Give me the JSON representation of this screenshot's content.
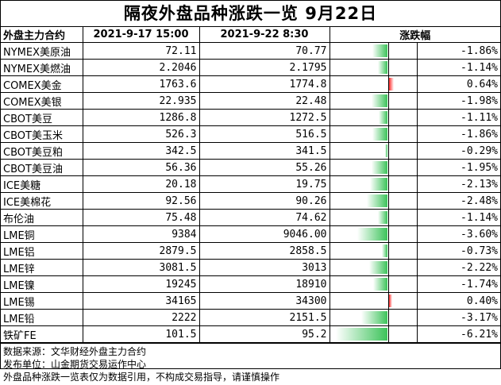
{
  "title": "隔夜外盘品种涨跌一览 9月22日",
  "headers": {
    "contract": "外盘主力合约",
    "date1": "2021-9-17 15:00",
    "date2": "2021-9-22 8:30",
    "change": "涨跌幅"
  },
  "colors": {
    "up": "#ff2b2b",
    "down": "#3cc35a"
  },
  "rows": [
    {
      "name": "NYMEX美原油",
      "v1": "72.11",
      "v2": "70.77",
      "pct": "-1.86%",
      "pct_value": -1.86
    },
    {
      "name": "NYMEX美燃油",
      "v1": "2.2046",
      "v2": "2.1795",
      "pct": "-1.14%",
      "pct_value": -1.14
    },
    {
      "name": "COMEX美金",
      "v1": "1763.6",
      "v2": "1774.8",
      "pct": "0.64%",
      "pct_value": 0.64
    },
    {
      "name": "COMEX美银",
      "v1": "22.935",
      "v2": "22.48",
      "pct": "-1.98%",
      "pct_value": -1.98
    },
    {
      "name": "CBOT美豆",
      "v1": "1286.8",
      "v2": "1272.5",
      "pct": "-1.11%",
      "pct_value": -1.11
    },
    {
      "name": "CBOT美玉米",
      "v1": "526.3",
      "v2": "516.5",
      "pct": "-1.86%",
      "pct_value": -1.86
    },
    {
      "name": "CBOT美豆粕",
      "v1": "342.5",
      "v2": "341.5",
      "pct": "-0.29%",
      "pct_value": -0.29
    },
    {
      "name": "CBOT美豆油",
      "v1": "56.36",
      "v2": "55.26",
      "pct": "-1.95%",
      "pct_value": -1.95
    },
    {
      "name": "ICE美糖",
      "v1": "20.18",
      "v2": "19.75",
      "pct": "-2.13%",
      "pct_value": -2.13
    },
    {
      "name": "ICE美棉花",
      "v1": "92.56",
      "v2": "90.26",
      "pct": "-2.48%",
      "pct_value": -2.48
    },
    {
      "name": "布伦油",
      "v1": "75.48",
      "v2": "74.62",
      "pct": "-1.14%",
      "pct_value": -1.14
    },
    {
      "name": "LME铜",
      "v1": "9384",
      "v2": "9046.00",
      "pct": "-3.60%",
      "pct_value": -3.6
    },
    {
      "name": "LME铝",
      "v1": "2879.5",
      "v2": "2858.5",
      "pct": "-0.73%",
      "pct_value": -0.73
    },
    {
      "name": "LME锌",
      "v1": "3081.5",
      "v2": "3013",
      "pct": "-2.22%",
      "pct_value": -2.22
    },
    {
      "name": "LME镍",
      "v1": "19245",
      "v2": "18910",
      "pct": "-1.74%",
      "pct_value": -1.74
    },
    {
      "name": "LME锡",
      "v1": "34165",
      "v2": "34300",
      "pct": "0.40%",
      "pct_value": 0.4
    },
    {
      "name": "LME铅",
      "v1": "2222",
      "v2": "2151.5",
      "pct": "-3.17%",
      "pct_value": -3.17
    },
    {
      "name": "铁矿FE",
      "v1": "101.5",
      "v2": "95.2",
      "pct": "-6.21%",
      "pct_value": -6.21
    }
  ],
  "footer": {
    "source": "数据来源：文华财经外盘主力合约",
    "publisher": "发布单位：山金期货交易运作中心",
    "disclaimer": "外盘品种涨跌一览表仅为数据引用，不构成交易指导，请谨慎操作"
  }
}
